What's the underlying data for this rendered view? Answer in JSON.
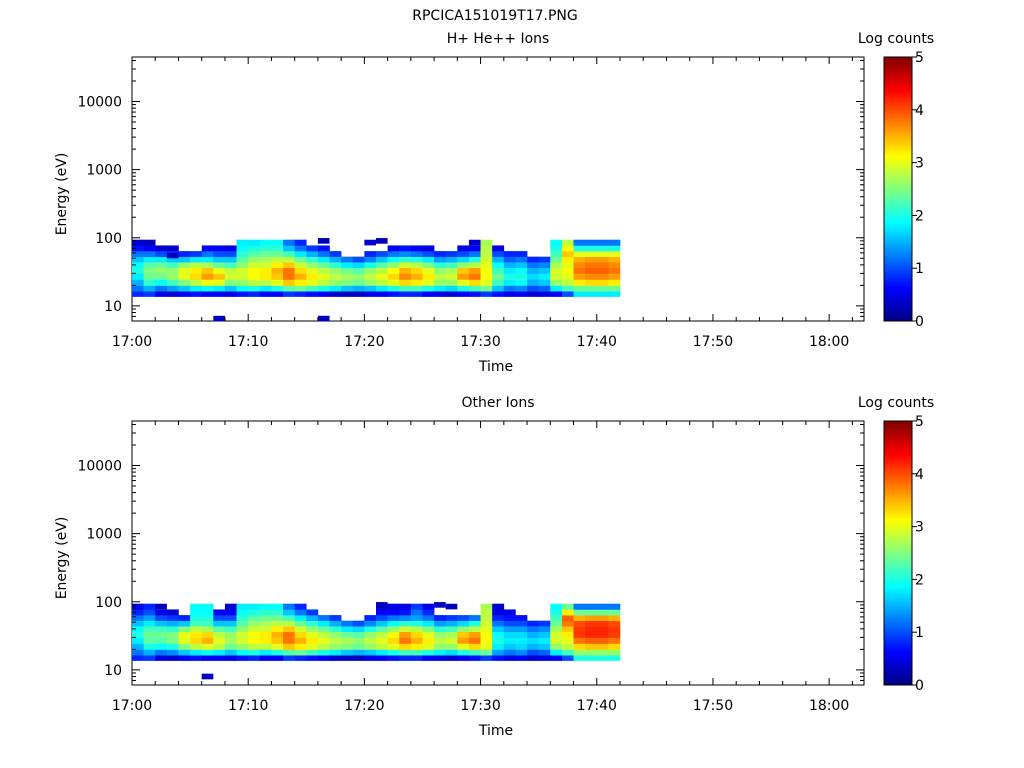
{
  "figure": {
    "title": "RPCICA151019T17.PNG"
  },
  "chart_data": [
    {
      "type": "heatmap",
      "title": "H+ He++ Ions",
      "xlabel": "Time",
      "ylabel": "Energy (eV)",
      "x_scale": "time",
      "y_scale": "log",
      "xlim": [
        "17:00",
        "18:03"
      ],
      "ylim": [
        6,
        45000
      ],
      "x_ticks": [
        "17:00",
        "17:10",
        "17:20",
        "17:30",
        "17:40",
        "17:50",
        "18:00"
      ],
      "y_ticks": [
        "10",
        "100",
        "1000",
        "10000"
      ],
      "colorbar": {
        "label": "Log counts",
        "range": [
          0,
          5
        ],
        "ticks": [
          "0",
          "1",
          "2",
          "3",
          "4",
          "5"
        ],
        "colormap": "jet"
      },
      "energy_bins_eV": [
        15,
        18,
        22,
        27,
        33,
        40,
        48,
        58,
        70,
        85
      ],
      "time_bins_min": [
        0,
        1,
        2,
        3,
        4,
        5,
        6,
        7,
        8,
        9,
        10,
        11,
        12,
        13,
        14,
        15,
        16,
        17,
        18,
        19,
        20,
        21,
        22,
        23,
        24,
        25,
        26,
        27,
        28,
        29,
        30,
        31,
        32,
        33,
        34,
        35,
        36,
        37,
        38,
        39,
        40,
        41
      ],
      "log_counts": [
        [
          0.8,
          1.2,
          1.5,
          1.8,
          2.0,
          1.9,
          1.6,
          1.2,
          0.7,
          0.4
        ],
        [
          0.9,
          1.5,
          2.1,
          2.4,
          2.5,
          2.3,
          1.8,
          1.2,
          0.6,
          0.3
        ],
        [
          0.5,
          1.2,
          1.9,
          2.4,
          2.6,
          2.4,
          1.8,
          1.0,
          0.4,
          null
        ],
        [
          0.4,
          1.4,
          2.2,
          2.6,
          2.6,
          2.2,
          1.6,
          0.9,
          0.4,
          null
        ],
        [
          0.6,
          1.6,
          2.5,
          3.0,
          3.0,
          2.6,
          1.6,
          0.8,
          null,
          null
        ],
        [
          0.7,
          1.8,
          2.8,
          3.3,
          3.2,
          2.8,
          1.8,
          0.9,
          null,
          null
        ],
        [
          0.6,
          1.9,
          3.1,
          3.6,
          3.4,
          2.7,
          1.8,
          1.2,
          0.6,
          null
        ],
        [
          0.6,
          1.8,
          3.0,
          3.4,
          3.0,
          2.4,
          1.6,
          1.0,
          0.6,
          null
        ],
        [
          0.5,
          1.6,
          2.5,
          2.9,
          2.8,
          2.2,
          1.6,
          1.0,
          0.5,
          null
        ],
        [
          0.7,
          1.9,
          2.6,
          2.9,
          2.9,
          2.6,
          2.3,
          2.1,
          1.9,
          1.8
        ],
        [
          0.8,
          2.0,
          2.8,
          3.1,
          3.1,
          2.9,
          2.6,
          2.3,
          2.0,
          1.8
        ],
        [
          0.6,
          1.8,
          2.8,
          3.2,
          3.2,
          2.9,
          2.7,
          2.4,
          2.1,
          1.9
        ],
        [
          0.6,
          2.0,
          3.0,
          3.4,
          3.5,
          3.2,
          2.8,
          2.4,
          2.1,
          1.9
        ],
        [
          0.9,
          2.3,
          3.4,
          3.8,
          3.8,
          3.4,
          2.8,
          2.2,
          1.6,
          1.2
        ],
        [
          0.8,
          2.4,
          3.2,
          3.5,
          3.3,
          2.9,
          2.4,
          1.8,
          1.2,
          0.8
        ],
        [
          0.7,
          2.2,
          3.0,
          3.2,
          3.0,
          2.6,
          2.1,
          1.5,
          0.9,
          null
        ],
        [
          0.6,
          2.0,
          2.8,
          3.0,
          2.8,
          2.4,
          1.8,
          1.2,
          0.7,
          null
        ],
        [
          0.4,
          1.8,
          2.6,
          2.8,
          2.6,
          2.1,
          1.5,
          0.9,
          null,
          null
        ],
        [
          0.3,
          1.6,
          2.5,
          2.7,
          2.4,
          1.8,
          1.2,
          null,
          null,
          null
        ],
        [
          0.3,
          1.5,
          2.4,
          2.6,
          2.3,
          1.7,
          1.0,
          null,
          null,
          null
        ],
        [
          0.5,
          1.6,
          2.6,
          2.8,
          2.6,
          2.0,
          1.3,
          0.8,
          null,
          null
        ],
        [
          0.6,
          1.8,
          2.8,
          3.0,
          2.8,
          2.3,
          1.6,
          1.0,
          null,
          null
        ],
        [
          0.7,
          2.0,
          3.0,
          3.3,
          3.1,
          2.6,
          1.9,
          1.2,
          0.6,
          null
        ],
        [
          0.8,
          2.2,
          3.3,
          3.7,
          3.5,
          2.9,
          2.1,
          1.3,
          0.7,
          null
        ],
        [
          0.8,
          2.2,
          3.2,
          3.5,
          3.3,
          2.8,
          2.0,
          1.2,
          0.6,
          null
        ],
        [
          0.6,
          2.0,
          3.0,
          3.2,
          3.0,
          2.5,
          1.8,
          1.0,
          0.5,
          null
        ],
        [
          0.5,
          1.8,
          2.6,
          2.8,
          2.6,
          2.1,
          1.4,
          0.8,
          null,
          null
        ],
        [
          0.4,
          1.7,
          2.6,
          2.9,
          2.7,
          2.2,
          1.5,
          0.9,
          null,
          null
        ],
        [
          0.6,
          2.0,
          3.0,
          3.6,
          3.4,
          2.6,
          1.7,
          1.0,
          0.5,
          null
        ],
        [
          0.7,
          2.2,
          3.3,
          3.8,
          3.6,
          2.8,
          2.0,
          1.2,
          0.6,
          null
        ],
        [
          0.9,
          2.4,
          3.0,
          3.1,
          3.1,
          3.0,
          2.9,
          2.8,
          2.8,
          2.7
        ],
        [
          0.7,
          1.6,
          2.2,
          2.4,
          2.2,
          1.9,
          1.5,
          1.0,
          0.5,
          null
        ],
        [
          0.5,
          1.2,
          1.8,
          2.0,
          1.8,
          1.5,
          1.1,
          0.8,
          null,
          null
        ],
        [
          0.6,
          1.3,
          1.9,
          2.0,
          1.9,
          1.6,
          1.2,
          0.8,
          null,
          null
        ],
        [
          0.4,
          1.0,
          1.5,
          1.7,
          1.5,
          1.2,
          0.8,
          null,
          null,
          null
        ],
        [
          0.5,
          1.1,
          1.6,
          1.8,
          1.6,
          1.3,
          0.9,
          null,
          null,
          null
        ],
        [
          0.6,
          1.8,
          2.6,
          2.9,
          2.9,
          2.7,
          2.4,
          2.2,
          2.0,
          1.9
        ],
        [
          1.0,
          2.2,
          2.8,
          3.0,
          3.1,
          3.0,
          3.2,
          3.4,
          3.1,
          2.8
        ],
        [
          1.8,
          2.4,
          3.2,
          3.6,
          3.8,
          3.7,
          3.5,
          3.0,
          2.0,
          1.2
        ],
        [
          1.8,
          2.4,
          3.3,
          3.7,
          3.9,
          3.8,
          3.6,
          3.0,
          2.0,
          1.2
        ],
        [
          1.8,
          2.4,
          3.3,
          3.7,
          3.9,
          3.8,
          3.6,
          3.0,
          2.0,
          1.2
        ],
        [
          1.8,
          2.4,
          3.2,
          3.6,
          3.8,
          3.7,
          3.5,
          3.0,
          2.0,
          1.2
        ]
      ],
      "isolated_points": [
        {
          "t": 7,
          "energy": 6.5,
          "value": 0.3
        },
        {
          "t": 16,
          "energy": 6.5,
          "value": 0.3
        },
        {
          "t": 3,
          "energy": 55,
          "value": 0.3
        },
        {
          "t": 16,
          "energy": 90,
          "value": 0.3
        },
        {
          "t": 21,
          "energy": 90,
          "value": 0.3
        },
        {
          "t": 20,
          "energy": 85,
          "value": 0.4
        },
        {
          "t": 29,
          "energy": 85,
          "value": 0.4
        }
      ]
    },
    {
      "type": "heatmap",
      "title": "Other Ions",
      "xlabel": "Time",
      "ylabel": "Energy (eV)",
      "x_scale": "time",
      "y_scale": "log",
      "xlim": [
        "17:00",
        "18:03"
      ],
      "ylim": [
        6,
        45000
      ],
      "x_ticks": [
        "17:00",
        "17:10",
        "17:20",
        "17:30",
        "17:40",
        "17:50",
        "18:00"
      ],
      "y_ticks": [
        "10",
        "100",
        "1000",
        "10000"
      ],
      "colorbar": {
        "label": "Log counts",
        "range": [
          0,
          5
        ],
        "ticks": [
          "0",
          "1",
          "2",
          "3",
          "4",
          "5"
        ],
        "colormap": "jet"
      },
      "energy_bins_eV": [
        15,
        18,
        22,
        27,
        33,
        40,
        48,
        58,
        70,
        85
      ],
      "time_bins_min": [
        0,
        1,
        2,
        3,
        4,
        5,
        6,
        7,
        8,
        9,
        10,
        11,
        12,
        13,
        14,
        15,
        16,
        17,
        18,
        19,
        20,
        21,
        22,
        23,
        24,
        25,
        26,
        27,
        28,
        29,
        30,
        31,
        32,
        33,
        34,
        35,
        36,
        37,
        38,
        39,
        40,
        41
      ],
      "log_counts": [
        [
          0.8,
          1.2,
          1.5,
          1.8,
          2.0,
          1.9,
          1.6,
          1.2,
          0.8,
          0.5
        ],
        [
          0.9,
          1.5,
          2.0,
          2.3,
          2.4,
          2.2,
          1.8,
          1.4,
          1.0,
          0.8
        ],
        [
          0.5,
          1.2,
          1.9,
          2.3,
          2.4,
          2.2,
          1.6,
          1.0,
          0.5,
          null
        ],
        [
          0.4,
          1.3,
          2.0,
          2.5,
          2.5,
          2.1,
          1.5,
          0.9,
          0.4,
          null
        ],
        [
          0.6,
          1.6,
          2.5,
          3.0,
          3.0,
          2.5,
          1.6,
          0.8,
          null,
          null
        ],
        [
          0.7,
          1.8,
          2.8,
          3.3,
          3.2,
          2.8,
          2.2,
          2.0,
          1.9,
          1.9
        ],
        [
          0.6,
          1.9,
          3.0,
          3.5,
          3.3,
          2.7,
          2.2,
          2.0,
          1.9,
          1.9
        ],
        [
          0.6,
          1.8,
          2.8,
          3.0,
          2.8,
          2.3,
          1.6,
          1.0,
          0.6,
          null
        ],
        [
          0.5,
          1.6,
          2.4,
          2.7,
          2.6,
          2.2,
          1.6,
          1.0,
          0.6,
          0.4
        ],
        [
          0.7,
          1.9,
          2.6,
          2.9,
          2.9,
          2.6,
          2.3,
          2.1,
          1.9,
          1.8
        ],
        [
          0.8,
          2.0,
          2.8,
          3.1,
          3.1,
          2.9,
          2.6,
          2.3,
          2.0,
          1.8
        ],
        [
          0.6,
          1.8,
          2.8,
          3.2,
          3.2,
          2.9,
          2.7,
          2.4,
          2.1,
          1.9
        ],
        [
          0.6,
          2.0,
          3.0,
          3.4,
          3.5,
          3.2,
          2.8,
          2.4,
          2.1,
          1.9
        ],
        [
          0.9,
          2.3,
          3.4,
          3.8,
          3.8,
          3.4,
          2.8,
          2.2,
          1.6,
          1.2
        ],
        [
          0.8,
          2.4,
          3.2,
          3.5,
          3.3,
          2.9,
          2.4,
          1.8,
          1.2,
          0.8
        ],
        [
          0.7,
          2.2,
          3.0,
          3.2,
          3.0,
          2.6,
          2.1,
          1.5,
          0.9,
          null
        ],
        [
          0.6,
          2.0,
          2.8,
          3.0,
          2.8,
          2.4,
          1.8,
          1.2,
          null,
          null
        ],
        [
          0.4,
          1.8,
          2.6,
          2.8,
          2.6,
          2.1,
          1.5,
          0.9,
          null,
          null
        ],
        [
          0.3,
          1.6,
          2.5,
          2.7,
          2.4,
          1.8,
          1.2,
          null,
          null,
          null
        ],
        [
          0.3,
          1.5,
          2.4,
          2.6,
          2.3,
          1.7,
          1.0,
          null,
          null,
          null
        ],
        [
          0.5,
          1.6,
          2.6,
          2.8,
          2.6,
          2.0,
          1.3,
          0.8,
          null,
          null
        ],
        [
          0.6,
          1.8,
          2.8,
          3.0,
          2.8,
          2.3,
          1.6,
          1.0,
          0.6,
          0.4
        ],
        [
          0.7,
          2.0,
          3.0,
          3.3,
          3.1,
          2.6,
          1.9,
          1.2,
          0.6,
          0.5
        ],
        [
          0.8,
          2.2,
          3.3,
          3.8,
          3.6,
          2.9,
          2.1,
          1.3,
          0.7,
          0.5
        ],
        [
          0.8,
          2.2,
          3.2,
          3.5,
          3.3,
          2.8,
          2.0,
          1.4,
          1.2,
          0.9
        ],
        [
          0.6,
          2.0,
          3.0,
          3.2,
          3.0,
          2.5,
          1.8,
          1.2,
          0.8,
          0.5
        ],
        [
          0.5,
          1.8,
          2.6,
          2.8,
          2.6,
          2.1,
          1.4,
          0.8,
          null,
          null
        ],
        [
          0.4,
          1.7,
          2.6,
          2.9,
          2.7,
          2.2,
          1.5,
          0.9,
          null,
          null
        ],
        [
          0.6,
          2.0,
          3.0,
          3.6,
          3.4,
          2.6,
          1.7,
          1.0,
          null,
          null
        ],
        [
          0.7,
          2.2,
          3.3,
          3.8,
          3.6,
          2.8,
          2.0,
          1.2,
          null,
          null
        ],
        [
          0.9,
          2.4,
          3.0,
          3.1,
          3.1,
          3.0,
          2.9,
          2.8,
          2.8,
          2.7
        ],
        [
          0.7,
          1.4,
          1.8,
          2.0,
          1.9,
          1.6,
          1.2,
          0.8,
          0.5,
          0.4
        ],
        [
          0.5,
          1.2,
          1.6,
          1.8,
          1.7,
          1.4,
          1.0,
          0.7,
          0.5,
          null
        ],
        [
          0.6,
          1.3,
          1.7,
          1.8,
          1.7,
          1.4,
          1.0,
          0.7,
          null,
          null
        ],
        [
          0.4,
          1.0,
          1.5,
          1.7,
          1.5,
          1.2,
          0.8,
          null,
          null,
          null
        ],
        [
          0.5,
          1.1,
          1.6,
          1.8,
          1.6,
          1.3,
          0.9,
          null,
          null,
          null
        ],
        [
          0.6,
          1.8,
          2.6,
          2.9,
          2.9,
          2.7,
          2.4,
          2.2,
          2.0,
          1.9
        ],
        [
          1.0,
          2.2,
          2.8,
          3.0,
          3.2,
          3.4,
          3.8,
          3.9,
          3.2,
          2.4
        ],
        [
          2.0,
          2.6,
          3.3,
          3.8,
          4.1,
          4.1,
          4.0,
          3.5,
          2.4,
          1.2
        ],
        [
          2.0,
          2.6,
          3.4,
          3.9,
          4.2,
          4.2,
          4.1,
          3.6,
          2.4,
          1.2
        ],
        [
          2.0,
          2.6,
          3.4,
          3.9,
          4.2,
          4.2,
          4.1,
          3.6,
          2.4,
          1.2
        ],
        [
          2.0,
          2.6,
          3.3,
          3.8,
          4.1,
          4.1,
          4.0,
          3.5,
          2.4,
          1.2
        ]
      ],
      "isolated_points": [
        {
          "t": 6,
          "energy": 8,
          "value": 0.3
        },
        {
          "t": 2,
          "energy": 85,
          "value": 0.3
        },
        {
          "t": 21,
          "energy": 90,
          "value": 0.3
        },
        {
          "t": 26,
          "energy": 90,
          "value": 0.3
        },
        {
          "t": 27,
          "energy": 85,
          "value": 0.3
        }
      ]
    }
  ]
}
